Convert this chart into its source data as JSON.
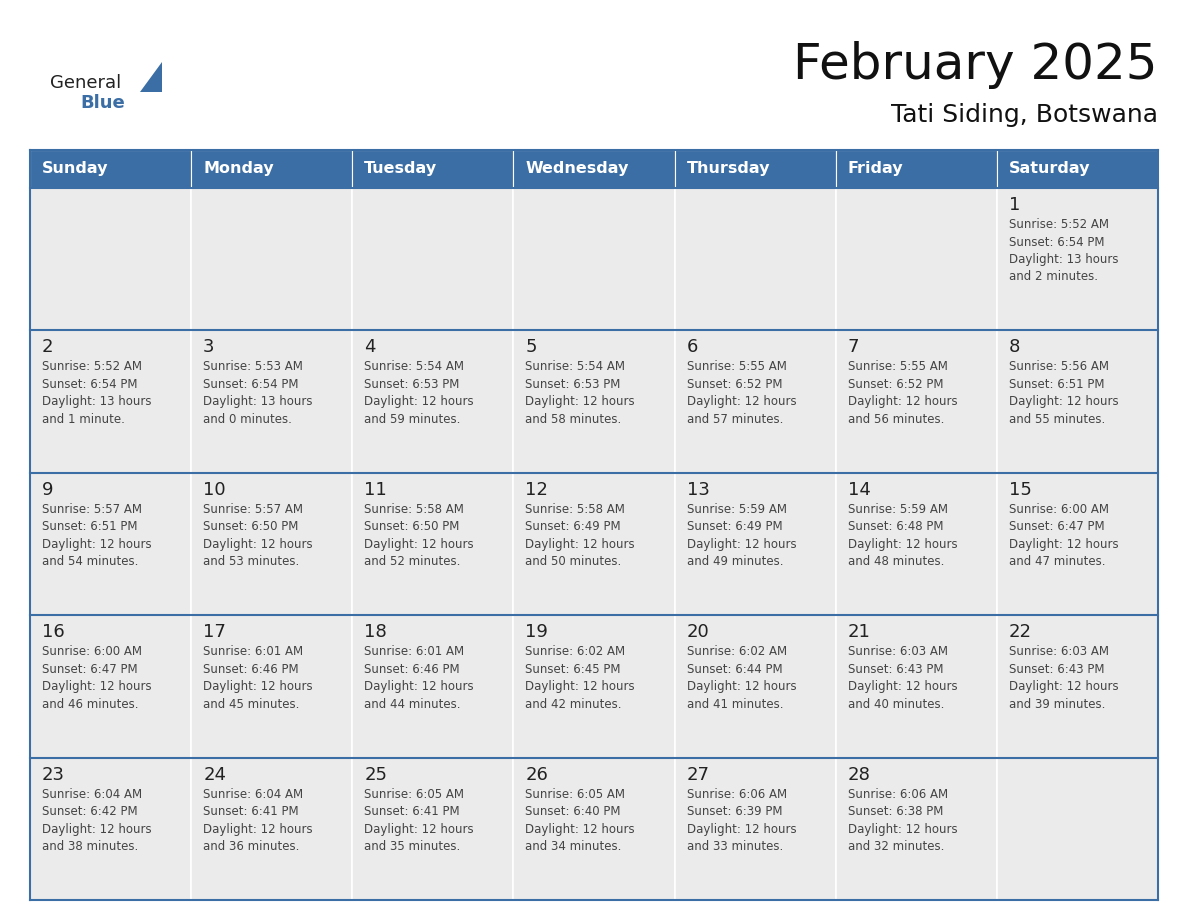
{
  "title": "February 2025",
  "subtitle": "Tati Siding, Botswana",
  "days_of_week": [
    "Sunday",
    "Monday",
    "Tuesday",
    "Wednesday",
    "Thursday",
    "Friday",
    "Saturday"
  ],
  "header_bg": "#3b6ea5",
  "header_text": "#FFFFFF",
  "cell_bg": "#ebebeb",
  "cell_bg_white": "#FFFFFF",
  "border_color": "#3b6ea5",
  "day_number_color": "#222222",
  "text_color": "#444444",
  "title_color": "#111111",
  "logo_general_color": "#222222",
  "logo_blue_color": "#3b6ea5",
  "calendar_data": [
    [
      {
        "day": null,
        "info": ""
      },
      {
        "day": null,
        "info": ""
      },
      {
        "day": null,
        "info": ""
      },
      {
        "day": null,
        "info": ""
      },
      {
        "day": null,
        "info": ""
      },
      {
        "day": null,
        "info": ""
      },
      {
        "day": 1,
        "info": "Sunrise: 5:52 AM\nSunset: 6:54 PM\nDaylight: 13 hours\nand 2 minutes."
      }
    ],
    [
      {
        "day": 2,
        "info": "Sunrise: 5:52 AM\nSunset: 6:54 PM\nDaylight: 13 hours\nand 1 minute."
      },
      {
        "day": 3,
        "info": "Sunrise: 5:53 AM\nSunset: 6:54 PM\nDaylight: 13 hours\nand 0 minutes."
      },
      {
        "day": 4,
        "info": "Sunrise: 5:54 AM\nSunset: 6:53 PM\nDaylight: 12 hours\nand 59 minutes."
      },
      {
        "day": 5,
        "info": "Sunrise: 5:54 AM\nSunset: 6:53 PM\nDaylight: 12 hours\nand 58 minutes."
      },
      {
        "day": 6,
        "info": "Sunrise: 5:55 AM\nSunset: 6:52 PM\nDaylight: 12 hours\nand 57 minutes."
      },
      {
        "day": 7,
        "info": "Sunrise: 5:55 AM\nSunset: 6:52 PM\nDaylight: 12 hours\nand 56 minutes."
      },
      {
        "day": 8,
        "info": "Sunrise: 5:56 AM\nSunset: 6:51 PM\nDaylight: 12 hours\nand 55 minutes."
      }
    ],
    [
      {
        "day": 9,
        "info": "Sunrise: 5:57 AM\nSunset: 6:51 PM\nDaylight: 12 hours\nand 54 minutes."
      },
      {
        "day": 10,
        "info": "Sunrise: 5:57 AM\nSunset: 6:50 PM\nDaylight: 12 hours\nand 53 minutes."
      },
      {
        "day": 11,
        "info": "Sunrise: 5:58 AM\nSunset: 6:50 PM\nDaylight: 12 hours\nand 52 minutes."
      },
      {
        "day": 12,
        "info": "Sunrise: 5:58 AM\nSunset: 6:49 PM\nDaylight: 12 hours\nand 50 minutes."
      },
      {
        "day": 13,
        "info": "Sunrise: 5:59 AM\nSunset: 6:49 PM\nDaylight: 12 hours\nand 49 minutes."
      },
      {
        "day": 14,
        "info": "Sunrise: 5:59 AM\nSunset: 6:48 PM\nDaylight: 12 hours\nand 48 minutes."
      },
      {
        "day": 15,
        "info": "Sunrise: 6:00 AM\nSunset: 6:47 PM\nDaylight: 12 hours\nand 47 minutes."
      }
    ],
    [
      {
        "day": 16,
        "info": "Sunrise: 6:00 AM\nSunset: 6:47 PM\nDaylight: 12 hours\nand 46 minutes."
      },
      {
        "day": 17,
        "info": "Sunrise: 6:01 AM\nSunset: 6:46 PM\nDaylight: 12 hours\nand 45 minutes."
      },
      {
        "day": 18,
        "info": "Sunrise: 6:01 AM\nSunset: 6:46 PM\nDaylight: 12 hours\nand 44 minutes."
      },
      {
        "day": 19,
        "info": "Sunrise: 6:02 AM\nSunset: 6:45 PM\nDaylight: 12 hours\nand 42 minutes."
      },
      {
        "day": 20,
        "info": "Sunrise: 6:02 AM\nSunset: 6:44 PM\nDaylight: 12 hours\nand 41 minutes."
      },
      {
        "day": 21,
        "info": "Sunrise: 6:03 AM\nSunset: 6:43 PM\nDaylight: 12 hours\nand 40 minutes."
      },
      {
        "day": 22,
        "info": "Sunrise: 6:03 AM\nSunset: 6:43 PM\nDaylight: 12 hours\nand 39 minutes."
      }
    ],
    [
      {
        "day": 23,
        "info": "Sunrise: 6:04 AM\nSunset: 6:42 PM\nDaylight: 12 hours\nand 38 minutes."
      },
      {
        "day": 24,
        "info": "Sunrise: 6:04 AM\nSunset: 6:41 PM\nDaylight: 12 hours\nand 36 minutes."
      },
      {
        "day": 25,
        "info": "Sunrise: 6:05 AM\nSunset: 6:41 PM\nDaylight: 12 hours\nand 35 minutes."
      },
      {
        "day": 26,
        "info": "Sunrise: 6:05 AM\nSunset: 6:40 PM\nDaylight: 12 hours\nand 34 minutes."
      },
      {
        "day": 27,
        "info": "Sunrise: 6:06 AM\nSunset: 6:39 PM\nDaylight: 12 hours\nand 33 minutes."
      },
      {
        "day": 28,
        "info": "Sunrise: 6:06 AM\nSunset: 6:38 PM\nDaylight: 12 hours\nand 32 minutes."
      },
      {
        "day": null,
        "info": ""
      }
    ]
  ]
}
